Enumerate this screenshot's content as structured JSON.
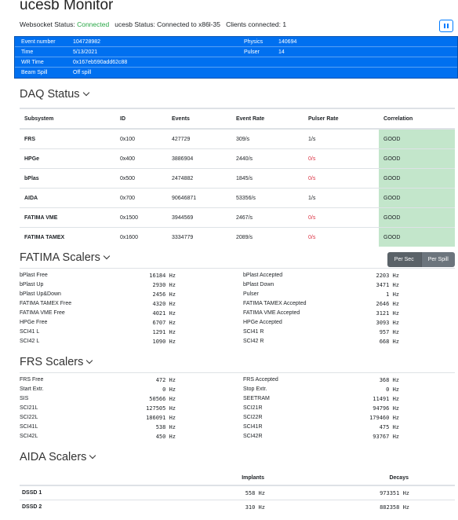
{
  "header": {
    "title": "ucesb Monitor",
    "websocket_label": "Websocket Status: ",
    "websocket_value": "Connected",
    "ucesb_status": "ucesb Status: Connected to x86l-35",
    "clients": "Clients connected: 1",
    "pause_icon": "pause-icon"
  },
  "event_info": {
    "event_number_label": "Event number",
    "event_number": "104728982",
    "time_label": "Time",
    "time": "5/13/2021",
    "wr_time_label": "WR Time",
    "wr_time": "0x167eb590add62c88",
    "beam_spill_label": "Beam Spill",
    "beam_spill": "Off spill",
    "physics_label": "Physics",
    "physics": "140694",
    "pulser_label": "Pulser",
    "pulser": "14"
  },
  "daq": {
    "title": "DAQ Status",
    "headers": [
      "Subsystem",
      "ID",
      "Events",
      "Event Rate",
      "Pulser Rate",
      "Correlation"
    ],
    "rows": [
      [
        "FRS",
        "0x100",
        "427729",
        "309/s",
        "1/s",
        "GOOD"
      ],
      [
        "HPGe",
        "0x400",
        "3886904",
        "2440/s",
        "0/s",
        "GOOD"
      ],
      [
        "bPlas",
        "0x500",
        "2474882",
        "1845/s",
        "0/s",
        "GOOD"
      ],
      [
        "AIDA",
        "0x700",
        "90646871",
        "53356/s",
        "1/s",
        "GOOD"
      ],
      [
        "FATIMA VME",
        "0x1500",
        "3944569",
        "2467/s",
        "0/s",
        "GOOD"
      ],
      [
        "FATIMA TAMEX",
        "0x1600",
        "3334779",
        "2089/s",
        "0/s",
        "GOOD"
      ]
    ],
    "red_pulser": [
      false,
      true,
      true,
      false,
      true,
      true
    ],
    "correlation_color": "#c3e6cb"
  },
  "fatima": {
    "title": "FATIMA Scalers",
    "per_sec": "Per Sec",
    "per_spill": "Per Spill",
    "left": [
      [
        "bPlast Free",
        "16184 Hz"
      ],
      [
        "bPlast Up",
        "2930 Hz"
      ],
      [
        "bPlast Up&Down",
        "2456 Hz"
      ],
      [
        "FATIMA TAMEX Free",
        "4320 Hz"
      ],
      [
        "FATIMA VME Free",
        "4021 Hz"
      ],
      [
        "HPGe Free",
        "6707 Hz"
      ],
      [
        "SCI41 L",
        "1291 Hz"
      ],
      [
        "SCI42 L",
        "1090 Hz"
      ]
    ],
    "right": [
      [
        "bPlast Accepted",
        "2203 Hz"
      ],
      [
        "bPlast Down",
        "3471 Hz"
      ],
      [
        "Pulser",
        "1 Hz"
      ],
      [
        "FATIMA TAMEX Accepted",
        "2646 Hz"
      ],
      [
        "FATIMA VME Accepted",
        "3121 Hz"
      ],
      [
        "HPGe Accepted",
        "3093 Hz"
      ],
      [
        "SCI41 R",
        "957 Hz"
      ],
      [
        "SCI42 R",
        "668 Hz"
      ]
    ]
  },
  "frs": {
    "title": "FRS Scalers",
    "left": [
      [
        "FRS Free",
        "472 Hz"
      ],
      [
        "Start Extr.",
        "0 Hz"
      ],
      [
        "SIS",
        "50566 Hz"
      ],
      [
        "SCI21L",
        "127505 Hz"
      ],
      [
        "SCI22L",
        "186091 Hz"
      ],
      [
        "SCI41L",
        "538 Hz"
      ],
      [
        "SCI42L",
        "450 Hz"
      ]
    ],
    "right": [
      [
        "FRS Accepted",
        "368 Hz"
      ],
      [
        "Stop Extr.",
        "0 Hz"
      ],
      [
        "SEETRAM",
        "11491 Hz"
      ],
      [
        "SCI21R",
        "94796 Hz"
      ],
      [
        "SCI22R",
        "179460 Hz"
      ],
      [
        "SCI41R",
        "475 Hz"
      ],
      [
        "SCI42R",
        "93767 Hz"
      ]
    ]
  },
  "aida": {
    "title": "AIDA Scalers",
    "headers": [
      "",
      "Implants",
      "Decays"
    ],
    "rows": [
      [
        "DSSD 1",
        "558 Hz",
        "973351 Hz"
      ],
      [
        "DSSD 2",
        "310 Hz",
        "882358 Hz"
      ]
    ]
  },
  "colors": {
    "accent": "#0070f0",
    "connected": "#28a745",
    "zero_rate": "#dc3545"
  }
}
